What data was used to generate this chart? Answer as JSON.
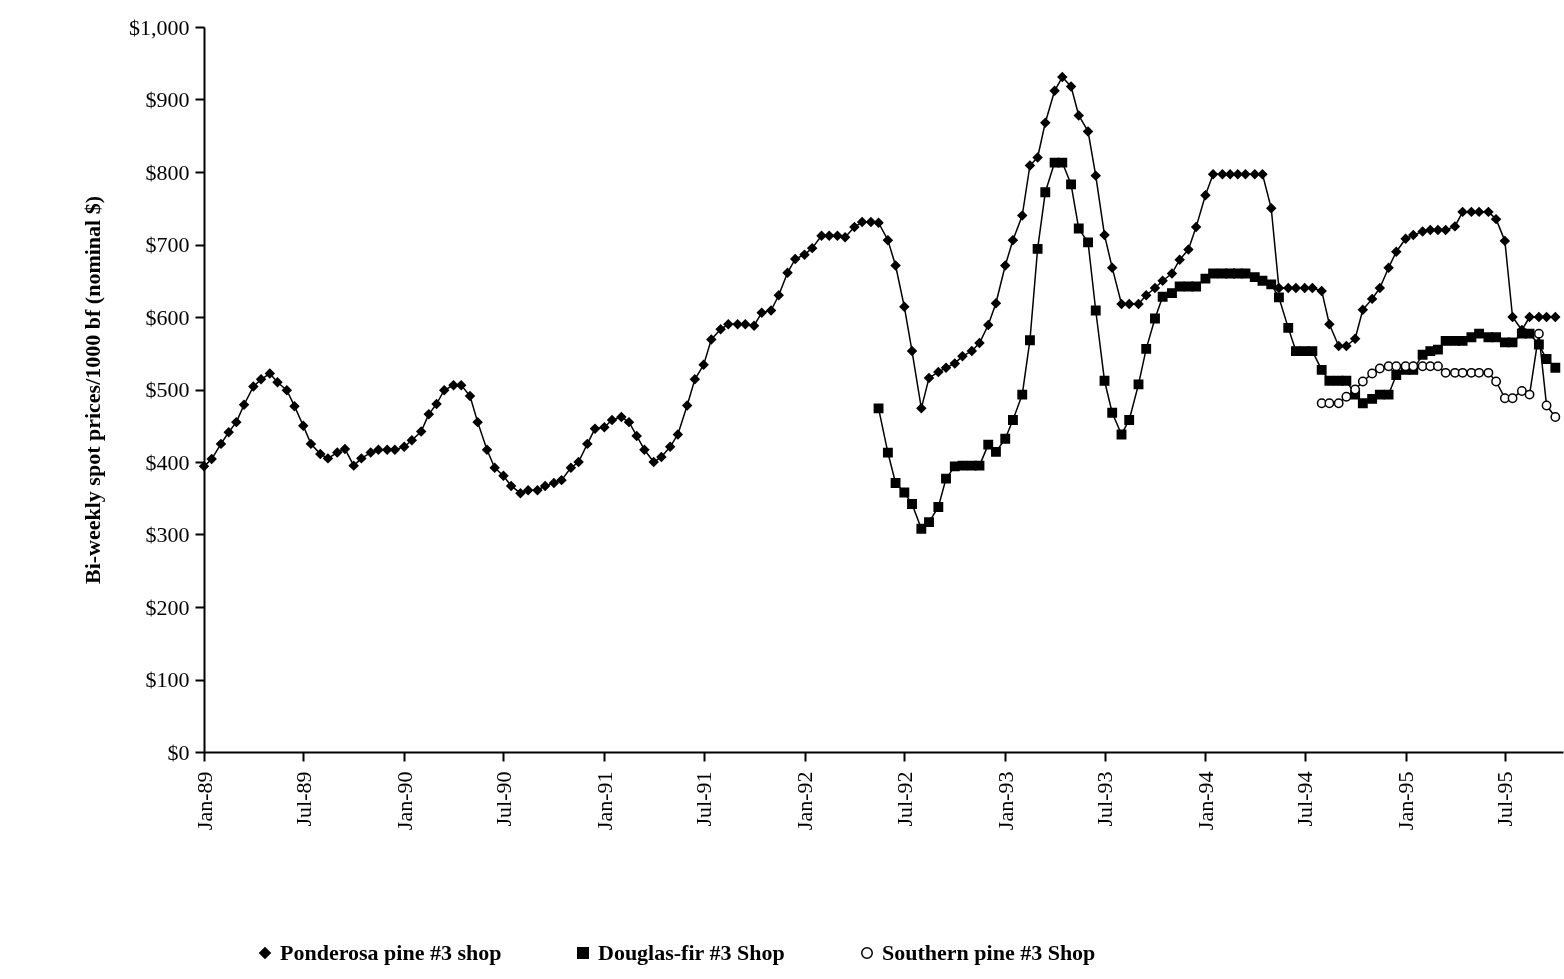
{
  "chart_data": {
    "type": "line",
    "ylabel": "Bi-weekly spot prices/1000 bf (nominal $)",
    "legend": "bottom",
    "grid": false,
    "xlim": [
      "1989-01-01",
      "1995-10-15"
    ],
    "ylim": [
      0,
      1000
    ],
    "yticks": [
      {
        "value": 0,
        "label": "$0"
      },
      {
        "value": 100,
        "label": "$100"
      },
      {
        "value": 200,
        "label": "$200"
      },
      {
        "value": 300,
        "label": "$300"
      },
      {
        "value": 400,
        "label": "$400"
      },
      {
        "value": 500,
        "label": "$500"
      },
      {
        "value": 600,
        "label": "$600"
      },
      {
        "value": 700,
        "label": "$700"
      },
      {
        "value": 800,
        "label": "$800"
      },
      {
        "value": 900,
        "label": "$900"
      },
      {
        "value": 1000,
        "label": "$1,000"
      }
    ],
    "xticks": [
      {
        "value": "1989-01-01",
        "label": "Jan-89"
      },
      {
        "value": "1989-07-01",
        "label": "Jul-89"
      },
      {
        "value": "1990-01-01",
        "label": "Jan-90"
      },
      {
        "value": "1990-07-01",
        "label": "Jul-90"
      },
      {
        "value": "1991-01-01",
        "label": "Jan-91"
      },
      {
        "value": "1991-07-01",
        "label": "Jul-91"
      },
      {
        "value": "1992-01-01",
        "label": "Jan-92"
      },
      {
        "value": "1992-07-01",
        "label": "Jul-92"
      },
      {
        "value": "1993-01-01",
        "label": "Jan-93"
      },
      {
        "value": "1993-07-01",
        "label": "Jul-93"
      },
      {
        "value": "1994-01-01",
        "label": "Jan-94"
      },
      {
        "value": "1994-07-01",
        "label": "Jul-94"
      },
      {
        "value": "1995-01-01",
        "label": "Jan-95"
      },
      {
        "value": "1995-07-01",
        "label": "Jul-95"
      }
    ],
    "x": [
      "1989-01-01",
      "1989-01-15",
      "1989-02-01",
      "1989-02-15",
      "1989-03-01",
      "1989-03-15",
      "1989-04-01",
      "1989-04-15",
      "1989-05-01",
      "1989-05-15",
      "1989-06-01",
      "1989-06-15",
      "1989-07-01",
      "1989-07-15",
      "1989-08-01",
      "1989-08-15",
      "1989-09-01",
      "1989-09-15",
      "1989-10-01",
      "1989-10-15",
      "1989-11-01",
      "1989-11-15",
      "1989-12-01",
      "1989-12-15",
      "1990-01-01",
      "1990-01-15",
      "1990-02-01",
      "1990-02-15",
      "1990-03-01",
      "1990-03-15",
      "1990-04-01",
      "1990-04-15",
      "1990-05-01",
      "1990-05-15",
      "1990-06-01",
      "1990-06-15",
      "1990-07-01",
      "1990-07-15",
      "1990-08-01",
      "1990-08-15",
      "1990-09-01",
      "1990-09-15",
      "1990-10-01",
      "1990-10-15",
      "1990-11-01",
      "1990-11-15",
      "1990-12-01",
      "1990-12-15",
      "1991-01-01",
      "1991-01-15",
      "1991-02-01",
      "1991-02-15",
      "1991-03-01",
      "1991-03-15",
      "1991-04-01",
      "1991-04-15",
      "1991-05-01",
      "1991-05-15",
      "1991-06-01",
      "1991-06-15",
      "1991-07-01",
      "1991-07-15",
      "1991-08-01",
      "1991-08-15",
      "1991-09-01",
      "1991-09-15",
      "1991-10-01",
      "1991-10-15",
      "1991-11-01",
      "1991-11-15",
      "1991-12-01",
      "1991-12-15",
      "1992-01-01",
      "1992-01-15",
      "1992-02-01",
      "1992-02-15",
      "1992-03-01",
      "1992-03-15",
      "1992-04-01",
      "1992-04-15",
      "1992-05-01",
      "1992-05-15",
      "1992-06-01",
      "1992-06-15",
      "1992-07-01",
      "1992-07-15",
      "1992-08-01",
      "1992-08-15",
      "1992-09-01",
      "1992-09-15",
      "1992-10-01",
      "1992-10-15",
      "1992-11-01",
      "1992-11-15",
      "1992-12-01",
      "1992-12-15",
      "1993-01-01",
      "1993-01-15",
      "1993-02-01",
      "1993-02-15",
      "1993-03-01",
      "1993-03-15",
      "1993-04-01",
      "1993-04-15",
      "1993-05-01",
      "1993-05-15",
      "1993-06-01",
      "1993-06-15",
      "1993-07-01",
      "1993-07-15",
      "1993-08-01",
      "1993-08-15",
      "1993-09-01",
      "1993-09-15",
      "1993-10-01",
      "1993-10-15",
      "1993-11-01",
      "1993-11-15",
      "1993-12-01",
      "1993-12-15",
      "1994-01-01",
      "1994-01-15",
      "1994-02-01",
      "1994-02-15",
      "1994-03-01",
      "1994-03-15",
      "1994-04-01",
      "1994-04-15",
      "1994-05-01",
      "1994-05-15",
      "1994-06-01",
      "1994-06-15",
      "1994-07-01",
      "1994-07-15",
      "1994-08-01",
      "1994-08-15",
      "1994-09-01",
      "1994-09-15",
      "1994-10-01",
      "1994-10-15",
      "1994-11-01",
      "1994-11-15",
      "1994-12-01",
      "1994-12-15",
      "1995-01-01",
      "1995-01-15",
      "1995-02-01",
      "1995-02-15",
      "1995-03-01",
      "1995-03-15",
      "1995-04-01",
      "1995-04-15",
      "1995-05-01",
      "1995-05-15",
      "1995-06-01",
      "1995-06-15",
      "1995-07-01",
      "1995-07-15",
      "1995-08-01",
      "1995-08-15",
      "1995-09-01",
      "1995-09-15",
      "1995-10-01"
    ],
    "series": [
      {
        "name": "Ponderosa pine #3 shop",
        "color": "#000000",
        "marker": "diamond",
        "values": [
          394,
          404,
          425,
          441,
          455,
          479,
          504,
          514,
          522,
          510,
          499,
          477,
          450,
          425,
          411,
          405,
          413,
          418,
          395,
          405,
          413,
          417,
          417,
          417,
          421,
          430,
          442,
          466,
          480,
          499,
          506,
          506,
          491,
          455,
          417,
          392,
          381,
          367,
          357,
          361,
          361,
          367,
          371,
          375,
          392,
          400,
          425,
          446,
          448,
          458,
          462,
          455,
          436,
          417,
          400,
          407,
          421,
          438,
          478,
          514,
          534,
          569,
          583,
          590,
          590,
          590,
          588,
          606,
          609,
          630,
          661,
          680,
          686,
          695,
          712,
          712,
          712,
          710,
          724,
          731,
          731,
          730,
          706,
          671,
          614,
          553,
          474,
          516,
          524,
          530,
          536,
          546,
          553,
          564,
          589,
          619,
          671,
          706,
          740,
          809,
          820,
          868,
          912,
          931,
          918,
          878,
          856,
          795,
          713,
          668,
          618,
          618,
          618,
          630,
          640,
          650,
          660,
          679,
          693,
          724,
          768,
          797,
          797,
          797,
          797,
          797,
          797,
          797,
          750,
          640,
          640,
          640,
          640,
          640,
          636,
          590,
          560,
          560,
          570,
          610,
          625,
          640,
          668,
          690,
          708,
          713,
          718,
          720,
          720,
          720,
          725,
          745,
          745,
          745,
          745,
          735,
          705,
          600,
          582,
          600,
          600,
          600,
          600
        ]
      },
      {
        "name": "Douglas-fir #3 Shop",
        "color": "#000000",
        "marker": "square",
        "x": [
          "1992-05-15",
          "1992-06-01",
          "1992-06-15",
          "1992-07-01",
          "1992-07-15",
          "1992-08-01",
          "1992-08-15",
          "1992-09-01",
          "1992-09-15",
          "1992-10-01",
          "1992-10-15",
          "1992-11-01",
          "1992-11-15",
          "1992-12-01",
          "1992-12-15",
          "1993-01-01",
          "1993-01-15",
          "1993-02-01",
          "1993-02-15",
          "1993-03-01",
          "1993-03-15",
          "1993-04-01",
          "1993-04-15",
          "1993-05-01",
          "1993-05-15",
          "1993-06-01",
          "1993-06-15",
          "1993-07-01",
          "1993-07-15",
          "1993-08-01",
          "1993-08-15",
          "1993-09-01",
          "1993-09-15",
          "1993-10-01",
          "1993-10-15",
          "1993-11-01",
          "1993-11-15",
          "1993-12-01",
          "1993-12-15",
          "1994-01-01",
          "1994-01-15",
          "1994-02-01",
          "1994-02-15",
          "1994-03-01",
          "1994-03-15",
          "1994-04-01",
          "1994-04-15",
          "1994-05-01",
          "1994-05-15",
          "1994-06-01",
          "1994-06-15",
          "1994-07-01",
          "1994-07-15",
          "1994-08-01",
          "1994-08-15",
          "1994-09-01",
          "1994-09-15",
          "1994-10-01",
          "1994-10-15",
          "1994-11-01",
          "1994-11-15",
          "1994-12-01",
          "1994-12-15",
          "1995-01-01",
          "1995-01-15",
          "1995-02-01",
          "1995-02-15",
          "1995-03-01",
          "1995-03-15",
          "1995-04-01",
          "1995-04-15",
          "1995-05-01",
          "1995-05-15",
          "1995-06-01",
          "1995-06-15",
          "1995-07-01",
          "1995-07-15",
          "1995-08-01",
          "1995-08-15",
          "1995-09-01",
          "1995-09-15",
          "1995-10-01"
        ],
        "values": [
          474,
          413,
          371,
          358,
          342,
          308,
          317,
          338,
          377,
          394,
          395,
          395,
          395,
          424,
          414,
          432,
          458,
          493,
          568,
          694,
          772,
          813,
          813,
          783,
          722,
          703,
          609,
          512,
          468,
          438,
          458,
          507,
          556,
          598,
          628,
          633,
          642,
          642,
          642,
          653,
          660,
          660,
          660,
          660,
          660,
          655,
          650,
          645,
          627,
          585,
          553,
          553,
          553,
          527,
          512,
          512,
          512,
          493,
          481,
          487,
          493,
          493,
          520,
          527,
          527,
          548,
          553,
          555,
          567,
          567,
          567,
          572,
          577,
          572,
          572,
          565,
          565,
          577,
          577,
          562,
          542,
          530
        ]
      },
      {
        "name": "Southern pine #3 Shop",
        "color": "#000000",
        "marker": "circle",
        "x": [
          "1994-08-01",
          "1994-08-15",
          "1994-09-01",
          "1994-09-15",
          "1994-10-01",
          "1994-10-15",
          "1994-11-01",
          "1994-11-15",
          "1994-12-01",
          "1994-12-15",
          "1995-01-01",
          "1995-01-15",
          "1995-02-01",
          "1995-02-15",
          "1995-03-01",
          "1995-03-15",
          "1995-04-01",
          "1995-04-15",
          "1995-05-01",
          "1995-05-15",
          "1995-06-01",
          "1995-06-15",
          "1995-07-01",
          "1995-07-15",
          "1995-08-01",
          "1995-08-15",
          "1995-09-01",
          "1995-09-15",
          "1995-10-01"
        ],
        "values": [
          481,
          481,
          481,
          490,
          500,
          511,
          522,
          529,
          532,
          532,
          532,
          532,
          532,
          532,
          532,
          523,
          523,
          523,
          523,
          523,
          523,
          511,
          488,
          488,
          498,
          493,
          577,
          478,
          462
        ]
      }
    ]
  }
}
